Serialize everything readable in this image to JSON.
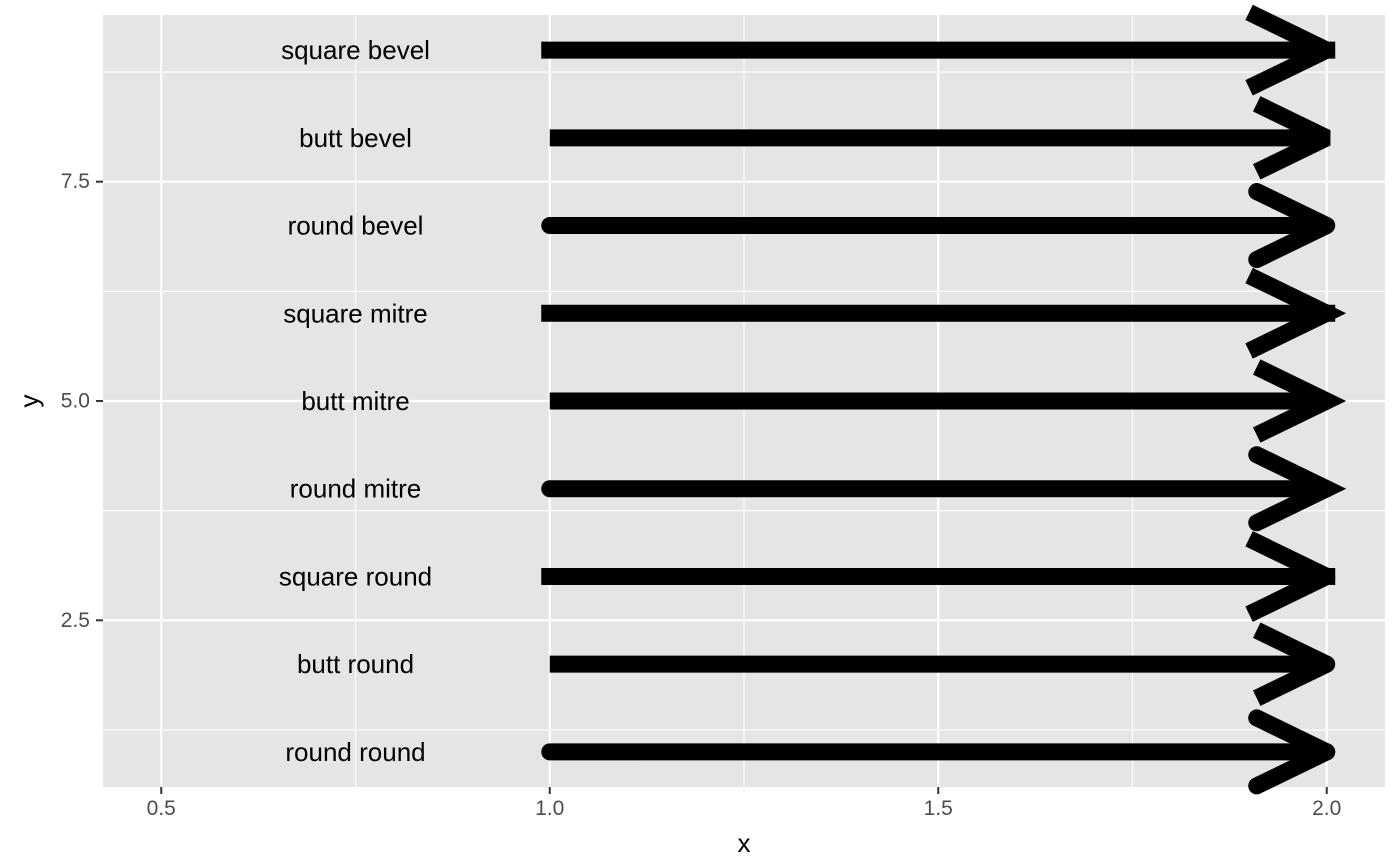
{
  "chart_data": {
    "type": "segment",
    "xlabel": "x",
    "ylabel": "y",
    "xlim": [
      0.425,
      2.075
    ],
    "ylim": [
      0.6,
      9.4
    ],
    "x_ticks": [
      0.5,
      1.0,
      1.5,
      2.0
    ],
    "x_tick_labels": [
      "0.5",
      "1.0",
      "1.5",
      "2.0"
    ],
    "y_ticks": [
      2.5,
      5.0,
      7.5
    ],
    "y_tick_labels": [
      "2.5",
      "5.0",
      "7.5"
    ],
    "grid": true,
    "background": "#e5e5e5",
    "grid_color": "#ffffff",
    "segment_color": "#000000",
    "segments": [
      {
        "y": 1,
        "x_start": 1.0,
        "x_end": 2.0,
        "lineend": "round",
        "linejoin": "round"
      },
      {
        "y": 2,
        "x_start": 1.0,
        "x_end": 2.0,
        "lineend": "butt",
        "linejoin": "round"
      },
      {
        "y": 3,
        "x_start": 1.0,
        "x_end": 2.0,
        "lineend": "square",
        "linejoin": "round"
      },
      {
        "y": 4,
        "x_start": 1.0,
        "x_end": 2.0,
        "lineend": "round",
        "linejoin": "mitre"
      },
      {
        "y": 5,
        "x_start": 1.0,
        "x_end": 2.0,
        "lineend": "butt",
        "linejoin": "mitre"
      },
      {
        "y": 6,
        "x_start": 1.0,
        "x_end": 2.0,
        "lineend": "square",
        "linejoin": "mitre"
      },
      {
        "y": 7,
        "x_start": 1.0,
        "x_end": 2.0,
        "lineend": "round",
        "linejoin": "bevel"
      },
      {
        "y": 8,
        "x_start": 1.0,
        "x_end": 2.0,
        "lineend": "butt",
        "linejoin": "bevel"
      },
      {
        "y": 9,
        "x_start": 1.0,
        "x_end": 2.0,
        "lineend": "square",
        "linejoin": "bevel"
      }
    ],
    "labels": [
      {
        "x": 0.75,
        "y": 1,
        "text": "round round"
      },
      {
        "x": 0.75,
        "y": 2,
        "text": "butt round"
      },
      {
        "x": 0.75,
        "y": 3,
        "text": "square round"
      },
      {
        "x": 0.75,
        "y": 4,
        "text": "round mitre"
      },
      {
        "x": 0.75,
        "y": 5,
        "text": "butt mitre"
      },
      {
        "x": 0.75,
        "y": 6,
        "text": "square mitre"
      },
      {
        "x": 0.75,
        "y": 7,
        "text": "round bevel"
      },
      {
        "x": 0.75,
        "y": 8,
        "text": "butt bevel"
      },
      {
        "x": 0.75,
        "y": 9,
        "text": "square bevel"
      }
    ]
  }
}
